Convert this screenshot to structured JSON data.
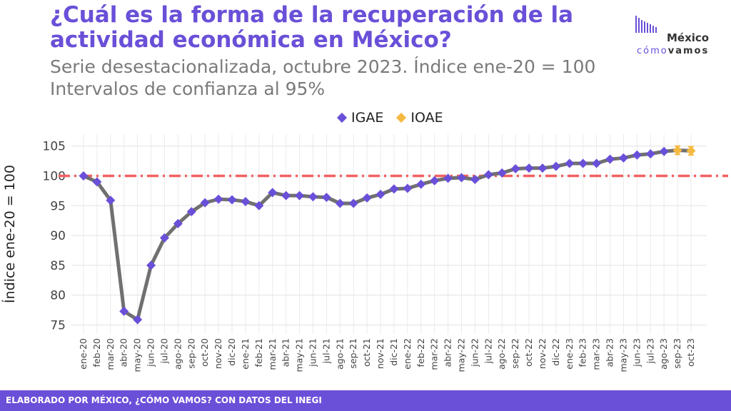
{
  "header": {
    "title": "¿Cuál es la forma de la recuperación de la actividad económica en México?",
    "subtitle_line1": "Serie desestacionalizada, octubre 2023. Índice ene-20 = 100",
    "subtitle_line2": "Intervalos de confianza al 95%"
  },
  "logo": {
    "word1": "México",
    "word2a": "cómo",
    "word2b": "vamos"
  },
  "footer": {
    "text": "ELABORADO POR MÉXICO, ¿CÓMO VAMOS? CON DATOS DEL INEGI"
  },
  "colors": {
    "accent": "#6a4fd8",
    "igae": "#6a4fd8",
    "ioae": "#f5b942",
    "reference": "#f26161",
    "line": "#707070"
  },
  "chart_data": {
    "type": "line",
    "ylabel": "Índice ene-20 = 100",
    "xlabel": "",
    "ylim": [
      73.5,
      107
    ],
    "yticks": [
      75,
      80,
      85,
      90,
      95,
      100,
      105
    ],
    "reference_line": 100,
    "legend": {
      "position": "top"
    },
    "grid": true,
    "categories": [
      "ene-20",
      "feb-20",
      "mar-20",
      "abr-20",
      "may-20",
      "jun-20",
      "jul-20",
      "ago-20",
      "sep-20",
      "oct-20",
      "nov-20",
      "dic-20",
      "ene-21",
      "feb-21",
      "mar-21",
      "abr-21",
      "may-21",
      "jun-21",
      "jul-21",
      "ago-21",
      "sep-21",
      "oct-21",
      "nov-21",
      "dic-21",
      "ene-22",
      "feb-22",
      "mar-22",
      "abr-22",
      "may-22",
      "jun-22",
      "jul-22",
      "ago-22",
      "sep-22",
      "oct-22",
      "nov-22",
      "dic-22",
      "ene-23",
      "feb-23",
      "mar-23",
      "abr-23",
      "may-23",
      "jun-23",
      "jul-23",
      "ago-23",
      "sep-23",
      "oct-23"
    ],
    "series": [
      {
        "name": "IGAE",
        "values": [
          100,
          99,
          95.9,
          77.3,
          75.9,
          85,
          89.6,
          92,
          94,
          95.5,
          96.1,
          96,
          95.7,
          95,
          97.2,
          96.7,
          96.7,
          96.5,
          96.4,
          95.4,
          95.4,
          96.3,
          96.9,
          97.8,
          97.9,
          98.6,
          99.2,
          99.6,
          99.7,
          99.4,
          100.2,
          100.5,
          101.2,
          101.3,
          101.3,
          101.6,
          102.1,
          102.1,
          102.1,
          102.8,
          103,
          103.5,
          103.7,
          104.1,
          null,
          null
        ]
      },
      {
        "name": "IOAE",
        "values": [
          null,
          null,
          null,
          null,
          null,
          null,
          null,
          null,
          null,
          null,
          null,
          null,
          null,
          null,
          null,
          null,
          null,
          null,
          null,
          null,
          null,
          null,
          null,
          null,
          null,
          null,
          null,
          null,
          null,
          null,
          null,
          null,
          null,
          null,
          null,
          null,
          null,
          null,
          null,
          null,
          null,
          null,
          null,
          104.1,
          104.3,
          104.2
        ],
        "ci_low": [
          null,
          null,
          null,
          null,
          null,
          null,
          null,
          null,
          null,
          null,
          null,
          null,
          null,
          null,
          null,
          null,
          null,
          null,
          null,
          null,
          null,
          null,
          null,
          null,
          null,
          null,
          null,
          null,
          null,
          null,
          null,
          null,
          null,
          null,
          null,
          null,
          null,
          null,
          null,
          null,
          null,
          null,
          null,
          null,
          103.6,
          103.5
        ],
        "ci_high": [
          null,
          null,
          null,
          null,
          null,
          null,
          null,
          null,
          null,
          null,
          null,
          null,
          null,
          null,
          null,
          null,
          null,
          null,
          null,
          null,
          null,
          null,
          null,
          null,
          null,
          null,
          null,
          null,
          null,
          null,
          null,
          null,
          null,
          null,
          null,
          null,
          null,
          null,
          null,
          null,
          null,
          null,
          null,
          null,
          105.0,
          104.9
        ]
      }
    ]
  }
}
